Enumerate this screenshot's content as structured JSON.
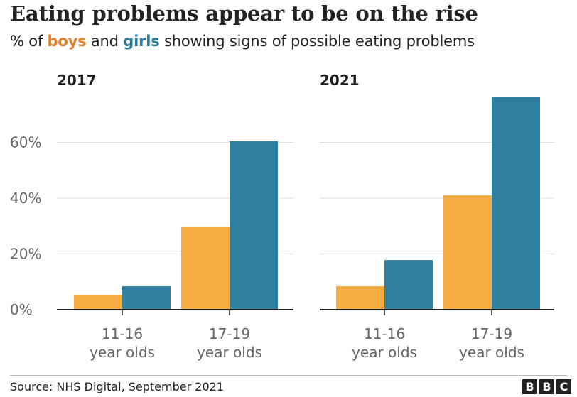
{
  "header": {
    "title": "Eating problems appear to be on the rise",
    "subtitle_prefix": "% of ",
    "subtitle_boys": "boys",
    "subtitle_mid": " and ",
    "subtitle_girls": "girls",
    "subtitle_suffix": " showing signs of possible eating problems"
  },
  "footer": {
    "source": "Source: NHS Digital, September 2021",
    "logo_letters": [
      "B",
      "B",
      "C"
    ]
  },
  "colors": {
    "boys": "#f5ac41",
    "girls": "#2f7fa0",
    "grid": "#dddddd",
    "axis": "#222222",
    "tick_text": "#666666"
  },
  "chart_data": [
    {
      "type": "bar",
      "title": "2017",
      "categories": [
        [
          "11-16",
          "year olds"
        ],
        [
          "17-19",
          "year olds"
        ]
      ],
      "series": [
        {
          "name": "boys",
          "values": [
            5.2,
            29.6
          ]
        },
        {
          "name": "girls",
          "values": [
            8.4,
            60.4
          ]
        }
      ],
      "ylim": [
        0,
        80
      ],
      "yticks": [
        0,
        20,
        40,
        60
      ],
      "ytick_labels": [
        "0%",
        "20%",
        "40%",
        "60%"
      ],
      "grid": true
    },
    {
      "type": "bar",
      "title": "2021",
      "categories": [
        [
          "11-16",
          "year olds"
        ],
        [
          "17-19",
          "year olds"
        ]
      ],
      "series": [
        {
          "name": "boys",
          "values": [
            8.4,
            41.0
          ]
        },
        {
          "name": "girls",
          "values": [
            17.8,
            76.4
          ]
        }
      ],
      "ylim": [
        0,
        80
      ],
      "yticks": [
        0,
        20,
        40,
        60
      ],
      "grid": true
    }
  ]
}
